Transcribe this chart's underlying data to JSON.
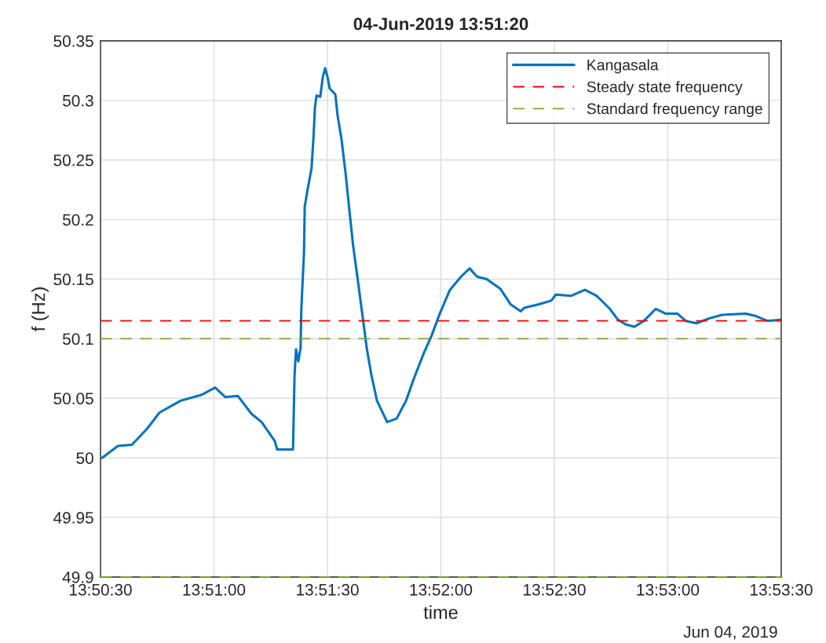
{
  "chart_data": {
    "type": "line",
    "title": "04-Jun-2019 13:51:20",
    "xlabel": "time",
    "ylabel": "f (Hz)",
    "annotations": [
      "Jun 04, 2019"
    ],
    "x": [
      "2019-06-04T13:50:30.4",
      "2019-06-04T13:50:34.6",
      "2019-06-04T13:50:38.3",
      "2019-06-04T13:50:42.2",
      "2019-06-04T13:50:45.6",
      "2019-06-04T13:50:51.2",
      "2019-06-04T13:50:56.8",
      "2019-06-04T13:51:00.3",
      "2019-06-04T13:51:03.0",
      "2019-06-04T13:51:06.3",
      "2019-06-04T13:51:09.9",
      "2019-06-04T13:51:12.6",
      "2019-06-04T13:51:16.1",
      "2019-06-04T13:51:16.7",
      "2019-06-04T13:51:20.9",
      "2019-06-04T13:51:21.3",
      "2019-06-04T13:51:21.7",
      "2019-06-04T13:51:22.3",
      "2019-06-04T13:51:22.9",
      "2019-06-04T13:51:23.1",
      "2019-06-04T13:51:23.8",
      "2019-06-04T13:51:24.0",
      "2019-06-04T13:51:24.8",
      "2019-06-04T13:51:25.8",
      "2019-06-04T13:51:26.3",
      "2019-06-04T13:51:26.7",
      "2019-06-04T13:51:27.1",
      "2019-06-04T13:51:28.1",
      "2019-06-04T13:51:28.8",
      "2019-06-04T13:51:29.4",
      "2019-06-04T13:51:30.0",
      "2019-06-04T13:51:30.6",
      "2019-06-04T13:51:32.1",
      "2019-06-04T13:51:32.7",
      "2019-06-04T13:51:33.7",
      "2019-06-04T13:51:34.8",
      "2019-06-04T13:51:35.8",
      "2019-06-04T13:51:36.8",
      "2019-06-04T13:51:38.3",
      "2019-06-04T13:51:39.5",
      "2019-06-04T13:51:40.4",
      "2019-06-04T13:51:41.6",
      "2019-06-04T13:51:43.1",
      "2019-06-04T13:51:45.8",
      "2019-06-04T13:51:48.3",
      "2019-06-04T13:51:50.8",
      "2019-06-04T13:51:52.8",
      "2019-06-04T13:51:55.5",
      "2019-06-04T13:51:57.6",
      "2019-06-04T13:51:59.7",
      "2019-06-04T13:52:02.4",
      "2019-06-04T13:52:05.3",
      "2019-06-04T13:52:07.6",
      "2019-06-04T13:52:09.6",
      "2019-06-04T13:52:12.1",
      "2019-06-04T13:52:15.7",
      "2019-06-04T13:52:18.4",
      "2019-06-04T13:52:21.1",
      "2019-06-04T13:52:22.1",
      "2019-06-04T13:52:26.0",
      "2019-06-04T13:52:29.2",
      "2019-06-04T13:52:30.4",
      "2019-06-04T13:52:34.4",
      "2019-06-04T13:52:38.1",
      "2019-06-04T13:52:41.2",
      "2019-06-04T13:52:44.7",
      "2019-06-04T13:52:46.8",
      "2019-06-04T13:52:48.9",
      "2019-06-04T13:52:51.2",
      "2019-06-04T13:52:53.7",
      "2019-06-04T13:52:56.8",
      "2019-06-04T13:52:59.5",
      "2019-06-04T13:53:02.6",
      "2019-06-04T13:53:04.7",
      "2019-06-04T13:53:07.6",
      "2019-06-04T13:53:10.9",
      "2019-06-04T13:53:14.4",
      "2019-06-04T13:53:20.6",
      "2019-06-04T13:53:23.3",
      "2019-06-04T13:53:26.3",
      "2019-06-04T13:53:30.0"
    ],
    "series": [
      {
        "name": "Kangasala",
        "color": "#0072bd",
        "values": [
          50.0,
          50.01,
          50.011,
          50.024,
          50.038,
          50.048,
          50.053,
          50.059,
          50.051,
          50.052,
          50.037,
          50.03,
          50.014,
          50.007,
          50.007,
          50.069,
          50.091,
          50.081,
          50.092,
          50.125,
          50.172,
          50.211,
          50.226,
          50.243,
          50.268,
          50.294,
          50.304,
          50.303,
          50.32,
          50.327,
          50.32,
          50.31,
          50.305,
          50.287,
          50.268,
          50.239,
          50.208,
          50.178,
          50.143,
          50.114,
          50.092,
          50.07,
          50.048,
          50.03,
          50.033,
          50.048,
          50.066,
          50.088,
          50.103,
          50.121,
          50.141,
          50.152,
          50.159,
          50.152,
          50.15,
          50.142,
          50.129,
          50.123,
          50.126,
          50.129,
          50.132,
          50.137,
          50.136,
          50.141,
          50.136,
          50.125,
          50.116,
          50.112,
          50.11,
          50.115,
          50.125,
          50.121,
          50.121,
          50.115,
          50.113,
          50.117,
          50.12,
          50.121,
          50.119,
          50.115,
          50.116
        ]
      }
    ],
    "ref_lines": [
      {
        "axis": "y",
        "value": 50.115,
        "label": "Steady state frequency",
        "color": "#ff0000",
        "line_style": "dashed"
      },
      {
        "axis": "y",
        "value": 50.1,
        "label": "Standard frequency range",
        "color": "#77ac30",
        "line_style": "dashed"
      },
      {
        "axis": "y",
        "value": 49.9,
        "color": "#77ac30",
        "line_style": "dashed"
      }
    ],
    "xlim": [
      "2019-06-04T13:50:30",
      "2019-06-04T13:53:30"
    ],
    "xticks": [
      {
        "value": "2019-06-04T13:50:30",
        "label": "13:50:30"
      },
      {
        "value": "2019-06-04T13:51:00",
        "label": "13:51:00"
      },
      {
        "value": "2019-06-04T13:51:30",
        "label": "13:51:30"
      },
      {
        "value": "2019-06-04T13:52:00",
        "label": "13:52:00"
      },
      {
        "value": "2019-06-04T13:52:30",
        "label": "13:52:30"
      },
      {
        "value": "2019-06-04T13:53:00",
        "label": "13:53:00"
      },
      {
        "value": "2019-06-04T13:53:30",
        "label": "13:53:30"
      }
    ],
    "ylim": [
      49.9,
      50.35
    ],
    "yticks": [
      49.9,
      49.95,
      50,
      50.05,
      50.1,
      50.15,
      50.2,
      50.25,
      50.3,
      50.35
    ],
    "grid": true,
    "legend": "top right",
    "marker": "none",
    "line_style": "solid"
  }
}
